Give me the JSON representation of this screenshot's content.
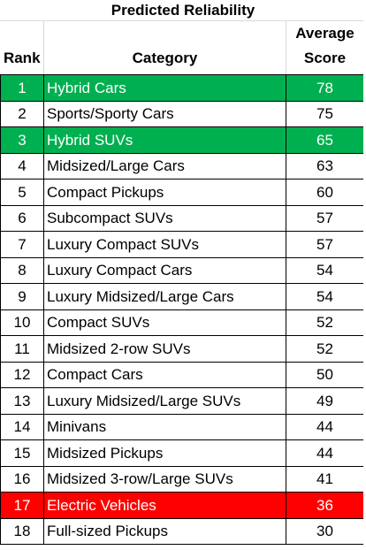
{
  "table": {
    "title": "Predicted Reliability",
    "headers": {
      "rank": "Rank",
      "category": "Category",
      "score_line1": "Average",
      "score_line2": "Score"
    },
    "colors": {
      "highlight_green": "#00b050",
      "highlight_red": "#ff0000"
    },
    "rows": [
      {
        "rank": "1",
        "category": "Hybrid Cars",
        "score": "78",
        "highlight": "green"
      },
      {
        "rank": "2",
        "category": "Sports/Sporty Cars",
        "score": "75",
        "highlight": ""
      },
      {
        "rank": "3",
        "category": "Hybrid SUVs",
        "score": "65",
        "highlight": "green"
      },
      {
        "rank": "4",
        "category": "Midsized/Large Cars",
        "score": "63",
        "highlight": ""
      },
      {
        "rank": "5",
        "category": "Compact Pickups",
        "score": "60",
        "highlight": ""
      },
      {
        "rank": "6",
        "category": "Subcompact SUVs",
        "score": "57",
        "highlight": ""
      },
      {
        "rank": "7",
        "category": "Luxury Compact SUVs",
        "score": "57",
        "highlight": ""
      },
      {
        "rank": "8",
        "category": "Luxury Compact Cars",
        "score": "54",
        "highlight": ""
      },
      {
        "rank": "9",
        "category": "Luxury Midsized/Large Cars",
        "score": "54",
        "highlight": ""
      },
      {
        "rank": "10",
        "category": "Compact SUVs",
        "score": "52",
        "highlight": ""
      },
      {
        "rank": "11",
        "category": "Midsized 2-row SUVs",
        "score": "52",
        "highlight": ""
      },
      {
        "rank": "12",
        "category": "Compact Cars",
        "score": "50",
        "highlight": ""
      },
      {
        "rank": "13",
        "category": "Luxury Midsized/Large SUVs",
        "score": "49",
        "highlight": ""
      },
      {
        "rank": "14",
        "category": "Minivans",
        "score": "44",
        "highlight": ""
      },
      {
        "rank": "15",
        "category": "Midsized Pickups",
        "score": "44",
        "highlight": ""
      },
      {
        "rank": "16",
        "category": "Midsized 3-row/Large SUVs",
        "score": "41",
        "highlight": ""
      },
      {
        "rank": "17",
        "category": "Electric Vehicles",
        "score": "36",
        "highlight": "red"
      },
      {
        "rank": "18",
        "category": "Full-sized Pickups",
        "score": "30",
        "highlight": ""
      }
    ]
  }
}
